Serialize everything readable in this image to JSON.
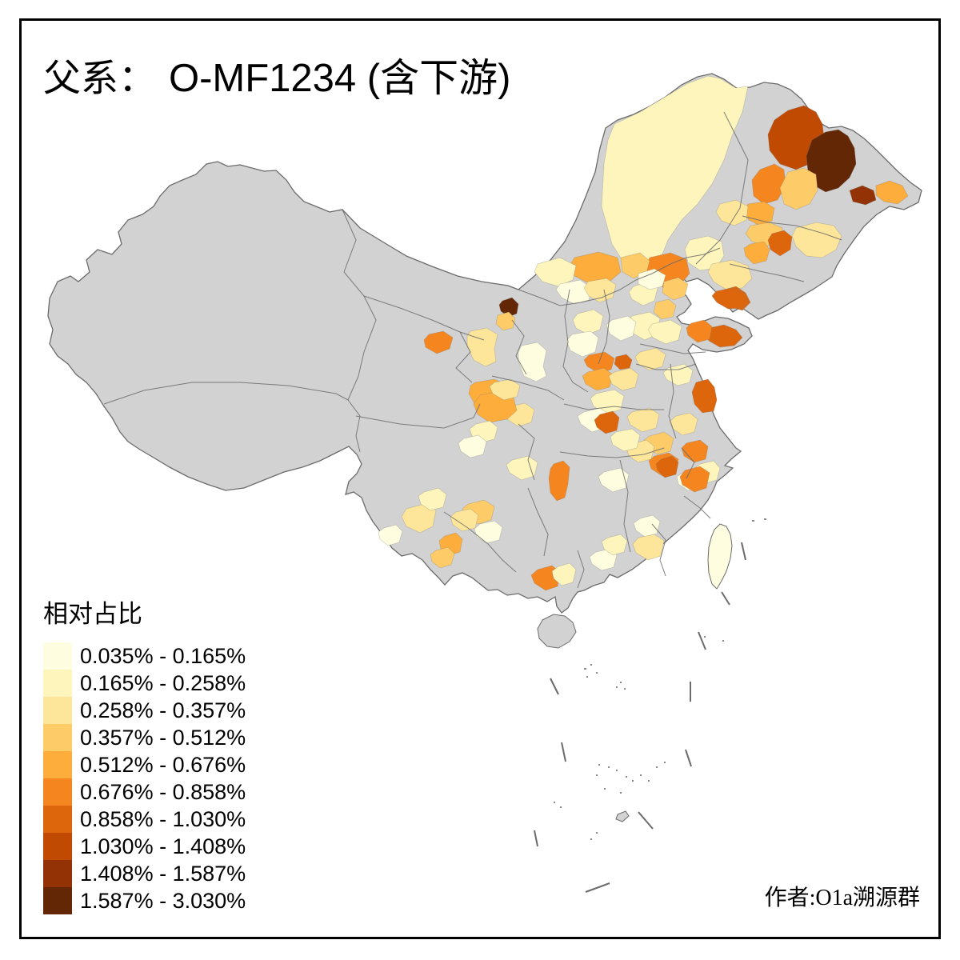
{
  "title": {
    "prefix": "父系：",
    "main": "O-MF1234 (含下游)"
  },
  "attribution": "作者:O1a溯源群",
  "legend": {
    "title": "相对占比",
    "classes": [
      {
        "label": "0.035% - 0.165%",
        "color": "#FFFDE0"
      },
      {
        "label": "0.165% - 0.258%",
        "color": "#FDF5BB"
      },
      {
        "label": "0.258% - 0.357%",
        "color": "#FDE699"
      },
      {
        "label": "0.357% - 0.512%",
        "color": "#FDCC68"
      },
      {
        "label": "0.512% - 0.676%",
        "color": "#FDAD3C"
      },
      {
        "label": "0.676% - 0.858%",
        "color": "#F5861F"
      },
      {
        "label": "0.858% - 1.030%",
        "color": "#DD660D"
      },
      {
        "label": "1.030% - 1.408%",
        "color": "#C04A02"
      },
      {
        "label": "1.408% - 1.587%",
        "color": "#933305"
      },
      {
        "label": "1.587% - 3.030%",
        "color": "#632706"
      }
    ]
  },
  "map": {
    "no_data_color": "#D2D2D2",
    "border_color": "#6B6B6B",
    "water_color": "#FFFFFF",
    "regions": {
      "hulunbuir": 2,
      "heihe": 8,
      "yichun": 10,
      "hegang": 9,
      "fuyuan": 5,
      "nenjiang": 6,
      "suihua": 4,
      "qiqihar": 5,
      "songyuan": 4,
      "jilin-city": 7,
      "changchun": 5,
      "yanbian": 3,
      "hinggan": 3,
      "tongliao": 2,
      "chifeng": 6,
      "xilingol": 5,
      "xilingol-e": 4,
      "im-mid": 2,
      "im-mid2": 1,
      "hohhot": 3,
      "beijing": 2,
      "chengde": 1,
      "tangshan": 4,
      "tianjin": 4,
      "hebei-s": 2,
      "shijiazhuang": 1,
      "taiyuan": 2,
      "shanxi-c": 1,
      "linfen": 6,
      "jiyuan": 7,
      "liaoning-w": 3,
      "dalian": 7,
      "wuhai": 10,
      "wuhai-s": 4,
      "ningxia": 1,
      "gansu-corridor": 3,
      "qilian": 6,
      "lanzhou": 5,
      "dingxi": 3,
      "yantai": 7,
      "qingdao": 7,
      "weifang": 6,
      "jinan": 2,
      "heze": 3,
      "yancheng": 7,
      "xuzhou": 2,
      "nanjing": 3,
      "chuzhou": 6,
      "zhejiang-n": 2,
      "hangzhou": 1,
      "hefei": 4,
      "anqing": 6,
      "anhui-w": 3,
      "luoyang": 5,
      "zhengzhou": 3,
      "henan-s": 2,
      "nanyang": 1,
      "yichang": 7,
      "wuhan": 3,
      "hubei-c": 2,
      "hunan-w": 6,
      "hunan-e": 1,
      "jiangxi-n": 1,
      "ganzhou": 3,
      "yingtan": 7,
      "nanping": 6,
      "chengdu": 5,
      "mianyang": 3,
      "leshan": 2,
      "sichuan-s": 1,
      "chongqing": 2,
      "zunyi": 4,
      "guizhou-c": 1,
      "bijie": 3,
      "dali": 3,
      "lijiang": 2,
      "kunming": 5,
      "yuxi": 4,
      "baoshan": 1,
      "nanning": 6,
      "yulin": 2,
      "zhaoqing": 1,
      "qingyuan": 2,
      "taiwan": 1
    }
  }
}
